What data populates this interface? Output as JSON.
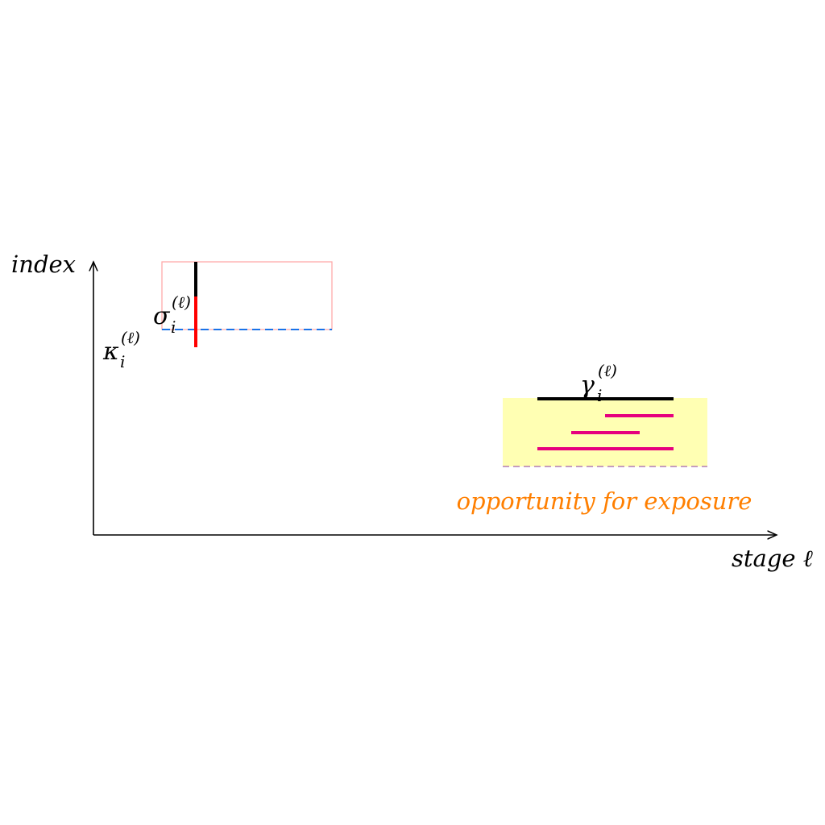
{
  "axes": {
    "y_label": "index",
    "x_label": "stage ℓ"
  },
  "labels": {
    "sigma": {
      "base": "σ",
      "sub": "i",
      "sup": "(ℓ)"
    },
    "kappa": {
      "base": "κ",
      "sub": "i",
      "sup": "(ℓ)"
    },
    "gamma": {
      "base": "γ",
      "sub": "i",
      "sup": "(ℓ)"
    },
    "exposure": "opportunity for exposure"
  },
  "colors": {
    "axis": "#000000",
    "pink_box_stroke": "#ffaaaa",
    "blue_dash": "#1a73e8",
    "red_line": "#ff0000",
    "yellow_fill": "#ffffb3",
    "magenta": "#e6007e",
    "exposure_text": "#ff7f00",
    "purple_dash": "#8b3aa0"
  }
}
